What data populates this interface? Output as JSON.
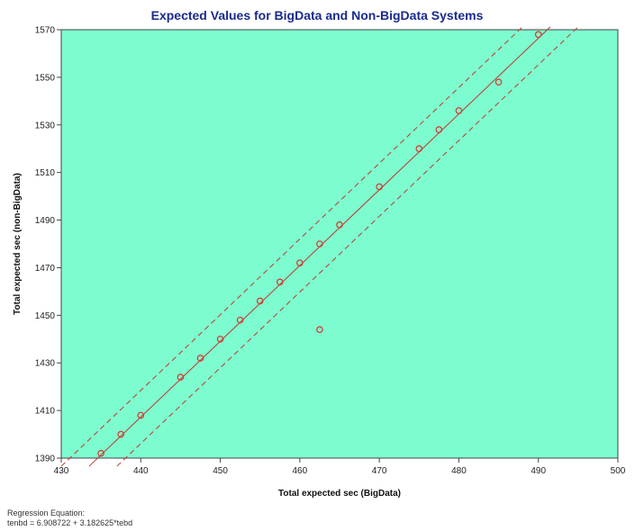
{
  "chart_data": {
    "type": "scatter",
    "title": "Expected Values for BigData and Non-BigData Systems",
    "xlabel": "Total expected sec (BigData)",
    "ylabel": "Total expected sec (non-BigData)",
    "xlim": [
      430,
      500
    ],
    "ylim": [
      1390,
      1570
    ],
    "x_ticks": [
      430,
      440,
      450,
      460,
      470,
      480,
      490,
      500
    ],
    "y_ticks": [
      1390,
      1410,
      1430,
      1450,
      1470,
      1490,
      1510,
      1530,
      1550,
      1570
    ],
    "grid": false,
    "legend": "none",
    "colors": {
      "plot_background": "#7dfcd0",
      "marker": "#d9342b",
      "regression_line": "#c0392b",
      "title": "#1a2a8c"
    },
    "points": [
      {
        "x": 435.0,
        "y": 1392
      },
      {
        "x": 437.5,
        "y": 1400
      },
      {
        "x": 440.0,
        "y": 1408
      },
      {
        "x": 445.0,
        "y": 1424
      },
      {
        "x": 447.5,
        "y": 1432
      },
      {
        "x": 450.0,
        "y": 1440
      },
      {
        "x": 452.5,
        "y": 1448
      },
      {
        "x": 455.0,
        "y": 1456
      },
      {
        "x": 457.5,
        "y": 1464
      },
      {
        "x": 460.0,
        "y": 1472
      },
      {
        "x": 462.5,
        "y": 1480
      },
      {
        "x": 462.5,
        "y": 1444
      },
      {
        "x": 465.0,
        "y": 1488
      },
      {
        "x": 470.0,
        "y": 1504
      },
      {
        "x": 475.0,
        "y": 1520
      },
      {
        "x": 477.5,
        "y": 1528
      },
      {
        "x": 480.0,
        "y": 1536
      },
      {
        "x": 485.0,
        "y": 1548
      },
      {
        "x": 490.0,
        "y": 1568
      }
    ],
    "regression": {
      "intercept": 6.908722,
      "slope": 3.182625,
      "x_range": [
        433.5,
        491.5
      ],
      "band": 3.5
    }
  },
  "footnote": {
    "line1": "Regression Equation:",
    "line2": "tenbd = 6.908722 + 3.182625*tebd"
  }
}
